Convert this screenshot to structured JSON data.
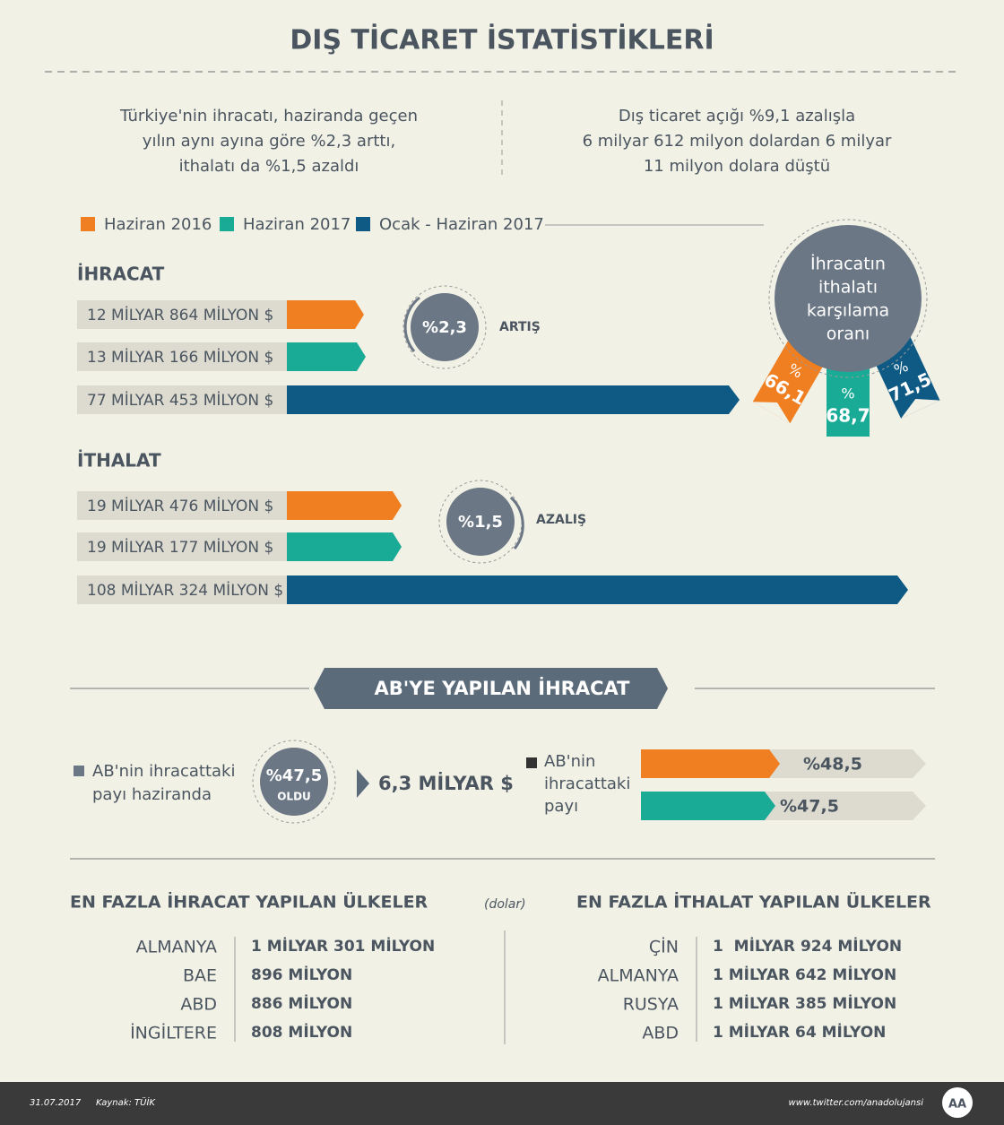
{
  "header": {
    "title": "DIŞ TİCARET İSTATİSTİKLERİ"
  },
  "summary": {
    "left": [
      "Türkiye'nin ihracatı, haziranda geçen",
      "yılın aynı ayına göre %2,3 arttı,",
      "ithalatı da %1,5 azaldı"
    ],
    "right": [
      "Dış ticaret açığı %9,1 azalışla",
      "6 milyar 612 milyon dolardan 6 milyar",
      "11 milyon dolara düştü"
    ]
  },
  "legend": [
    "Haziran 2016",
    "Haziran 2017",
    "Ocak - Haziran 2017"
  ],
  "exports": {
    "title": "İHRACAT",
    "bars": [
      "12 MİLYAR 864 MİLYON $",
      "13 MİLYAR 166 MİLYON $",
      "77 MİLYAR 453 MİLYON $"
    ],
    "change": "%2,3",
    "change_label": "ARTIŞ"
  },
  "imports": {
    "title": "İTHALAT",
    "bars": [
      "19 MİLYAR 476 MİLYON $",
      "19 MİLYAR 177 MİLYON $",
      "108 MİLYAR 324 MİLYON $"
    ],
    "change": "%1,5",
    "change_label": "AZALIŞ"
  },
  "coverage": {
    "title": [
      "İhracatın",
      "ithalatı",
      "karşılama",
      "oranı"
    ],
    "ribbons": [
      {
        "symbol": "%",
        "value": "66,1"
      },
      {
        "symbol": "%",
        "value": "68,7"
      },
      {
        "symbol": "%",
        "value": "71,5"
      }
    ]
  },
  "eu": {
    "title": "AB'YE YAPILAN İHRACAT",
    "left_label": [
      "AB'nin ihracattaki",
      "payı haziranda"
    ],
    "badge": "%47,5",
    "badge_sub": "OLDU",
    "amount": "6,3 MİLYAR $",
    "right_label": [
      "AB'nin",
      "ihracattaki",
      "payı"
    ],
    "bars": [
      "%48,5",
      "%47,5"
    ]
  },
  "top_exports": {
    "title": "EN FAZLA İHRACAT YAPILAN ÜLKELER",
    "unit": "(dolar)",
    "rows": [
      [
        "ALMANYA",
        "1 MİLYAR 301 MİLYON"
      ],
      [
        "BAE",
        "896 MİLYON"
      ],
      [
        "ABD",
        "886 MİLYON"
      ],
      [
        "İNGİLTERE",
        "808 MİLYON"
      ]
    ]
  },
  "top_imports": {
    "title": "EN FAZLA İTHALAT YAPILAN ÜLKELER",
    "rows": [
      [
        "ÇİN",
        "1  MİLYAR 924 MİLYON"
      ],
      [
        "ALMANYA",
        "1 MİLYAR 642 MİLYON"
      ],
      [
        "RUSYA",
        "1 MİLYAR 385 MİLYON"
      ],
      [
        "ABD",
        "1 MİLYAR 64 MİLYON"
      ]
    ]
  },
  "footer": {
    "date": "31.07.2017",
    "source": "Kaynak: TÜİK",
    "url": "www.twitter.com/anadolujansi"
  }
}
